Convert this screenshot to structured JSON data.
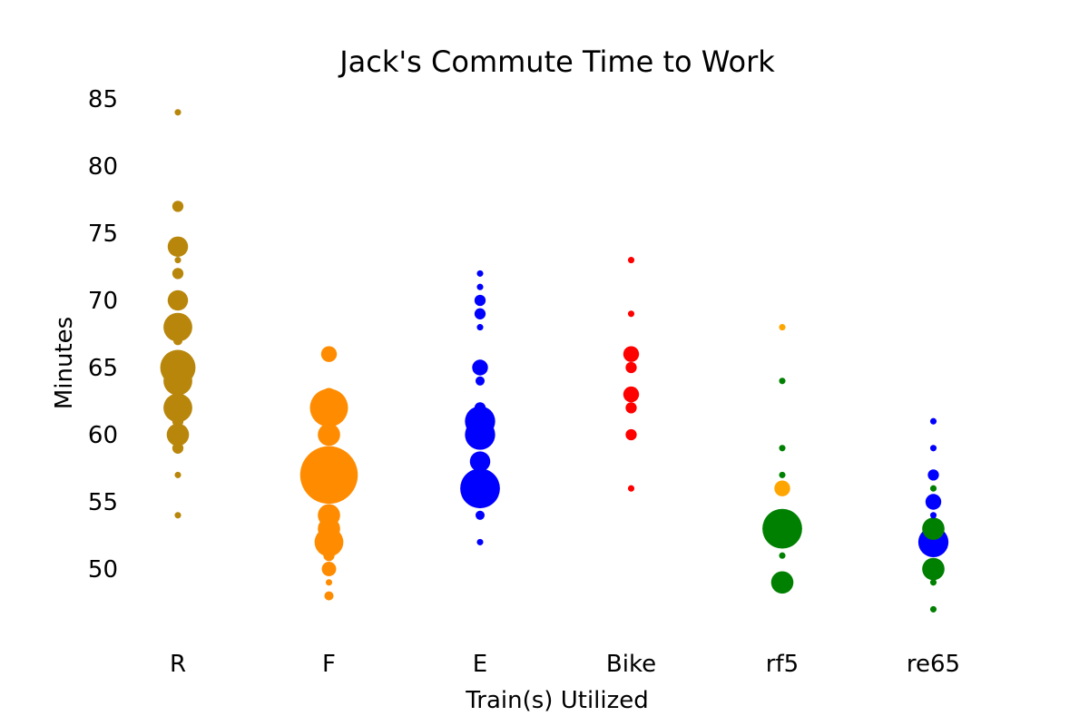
{
  "chart_data": {
    "type": "scatter",
    "title": "Jack's Commute Time to Work",
    "xlabel": "Train(s) Utilized",
    "ylabel": "Minutes",
    "categories": [
      "R",
      "F",
      "E",
      "Bike",
      "rf5",
      "re65"
    ],
    "ylim": [
      44.5,
      86
    ],
    "yticks": [
      50,
      55,
      60,
      65,
      70,
      75,
      80,
      85
    ],
    "grid": false,
    "colors": {
      "R": "#b8860b",
      "F": "#ff8c00",
      "E": "#0000ff",
      "Bike": "#ff0000",
      "rf5_orange": "#ffa500",
      "rf5_green": "#008000",
      "re65_blue": "#0000ff",
      "re65_green": "#008000"
    },
    "points": [
      {
        "cat": "R",
        "minutes": 84,
        "count": 1,
        "color": "#b8860b"
      },
      {
        "cat": "R",
        "minutes": 77,
        "count": 3,
        "color": "#b8860b"
      },
      {
        "cat": "R",
        "minutes": 74,
        "count": 10,
        "color": "#b8860b"
      },
      {
        "cat": "R",
        "minutes": 73,
        "count": 1,
        "color": "#b8860b"
      },
      {
        "cat": "R",
        "minutes": 72,
        "count": 3,
        "color": "#b8860b"
      },
      {
        "cat": "R",
        "minutes": 70,
        "count": 10,
        "color": "#b8860b"
      },
      {
        "cat": "R",
        "minutes": 68,
        "count": 20,
        "color": "#b8860b"
      },
      {
        "cat": "R",
        "minutes": 67,
        "count": 2,
        "color": "#b8860b"
      },
      {
        "cat": "R",
        "minutes": 65,
        "count": 30,
        "color": "#b8860b"
      },
      {
        "cat": "R",
        "minutes": 64,
        "count": 20,
        "color": "#b8860b"
      },
      {
        "cat": "R",
        "minutes": 62,
        "count": 20,
        "color": "#b8860b"
      },
      {
        "cat": "R",
        "minutes": 61,
        "count": 3,
        "color": "#b8860b"
      },
      {
        "cat": "R",
        "minutes": 60,
        "count": 12,
        "color": "#b8860b"
      },
      {
        "cat": "R",
        "minutes": 59,
        "count": 3,
        "color": "#b8860b"
      },
      {
        "cat": "R",
        "minutes": 57,
        "count": 1,
        "color": "#b8860b"
      },
      {
        "cat": "R",
        "minutes": 54,
        "count": 1,
        "color": "#b8860b"
      },
      {
        "cat": "F",
        "minutes": 66,
        "count": 6,
        "color": "#ff8c00"
      },
      {
        "cat": "F",
        "minutes": 63,
        "count": 4,
        "color": "#ff8c00"
      },
      {
        "cat": "F",
        "minutes": 62,
        "count": 35,
        "color": "#ff8c00"
      },
      {
        "cat": "F",
        "minutes": 60,
        "count": 12,
        "color": "#ff8c00"
      },
      {
        "cat": "F",
        "minutes": 58,
        "count": 20,
        "color": "#ff8c00"
      },
      {
        "cat": "F",
        "minutes": 57,
        "count": 80,
        "color": "#ff8c00"
      },
      {
        "cat": "F",
        "minutes": 54,
        "count": 12,
        "color": "#ff8c00"
      },
      {
        "cat": "F",
        "minutes": 53,
        "count": 12,
        "color": "#ff8c00"
      },
      {
        "cat": "F",
        "minutes": 52,
        "count": 20,
        "color": "#ff8c00"
      },
      {
        "cat": "F",
        "minutes": 51,
        "count": 3,
        "color": "#ff8c00"
      },
      {
        "cat": "F",
        "minutes": 50,
        "count": 5,
        "color": "#ff8c00"
      },
      {
        "cat": "F",
        "minutes": 49,
        "count": 1,
        "color": "#ff8c00"
      },
      {
        "cat": "F",
        "minutes": 48,
        "count": 2,
        "color": "#ff8c00"
      },
      {
        "cat": "E",
        "minutes": 72,
        "count": 1,
        "color": "#0000ff"
      },
      {
        "cat": "E",
        "minutes": 71,
        "count": 1,
        "color": "#0000ff"
      },
      {
        "cat": "E",
        "minutes": 70,
        "count": 3,
        "color": "#0000ff"
      },
      {
        "cat": "E",
        "minutes": 69,
        "count": 3,
        "color": "#0000ff"
      },
      {
        "cat": "E",
        "minutes": 68,
        "count": 1,
        "color": "#0000ff"
      },
      {
        "cat": "E",
        "minutes": 65,
        "count": 6,
        "color": "#0000ff"
      },
      {
        "cat": "E",
        "minutes": 64,
        "count": 2,
        "color": "#0000ff"
      },
      {
        "cat": "E",
        "minutes": 62,
        "count": 3,
        "color": "#0000ff"
      },
      {
        "cat": "E",
        "minutes": 61,
        "count": 22,
        "color": "#0000ff"
      },
      {
        "cat": "E",
        "minutes": 60,
        "count": 22,
        "color": "#0000ff"
      },
      {
        "cat": "E",
        "minutes": 58,
        "count": 10,
        "color": "#0000ff"
      },
      {
        "cat": "E",
        "minutes": 56,
        "count": 38,
        "color": "#0000ff"
      },
      {
        "cat": "E",
        "minutes": 54,
        "count": 2,
        "color": "#0000ff"
      },
      {
        "cat": "E",
        "minutes": 52,
        "count": 1,
        "color": "#0000ff"
      },
      {
        "cat": "Bike",
        "minutes": 73,
        "count": 1,
        "color": "#ff0000"
      },
      {
        "cat": "Bike",
        "minutes": 69,
        "count": 1,
        "color": "#ff0000"
      },
      {
        "cat": "Bike",
        "minutes": 66,
        "count": 6,
        "color": "#ff0000"
      },
      {
        "cat": "Bike",
        "minutes": 65,
        "count": 3,
        "color": "#ff0000"
      },
      {
        "cat": "Bike",
        "minutes": 63,
        "count": 6,
        "color": "#ff0000"
      },
      {
        "cat": "Bike",
        "minutes": 62,
        "count": 3,
        "color": "#ff0000"
      },
      {
        "cat": "Bike",
        "minutes": 60,
        "count": 3,
        "color": "#ff0000"
      },
      {
        "cat": "Bike",
        "minutes": 56,
        "count": 1,
        "color": "#ff0000"
      },
      {
        "cat": "rf5",
        "minutes": 68,
        "count": 1,
        "color": "#ffa500"
      },
      {
        "cat": "rf5",
        "minutes": 64,
        "count": 1,
        "color": "#008000"
      },
      {
        "cat": "rf5",
        "minutes": 59,
        "count": 1,
        "color": "#008000"
      },
      {
        "cat": "rf5",
        "minutes": 57,
        "count": 1,
        "color": "#008000"
      },
      {
        "cat": "rf5",
        "minutes": 56,
        "count": 6,
        "color": "#ffa500"
      },
      {
        "cat": "rf5",
        "minutes": 53,
        "count": 38,
        "color": "#008000"
      },
      {
        "cat": "rf5",
        "minutes": 51,
        "count": 1,
        "color": "#008000"
      },
      {
        "cat": "rf5",
        "minutes": 49,
        "count": 12,
        "color": "#008000"
      },
      {
        "cat": "re65",
        "minutes": 61,
        "count": 1,
        "color": "#0000ff"
      },
      {
        "cat": "re65",
        "minutes": 59,
        "count": 1,
        "color": "#0000ff"
      },
      {
        "cat": "re65",
        "minutes": 57,
        "count": 3,
        "color": "#0000ff"
      },
      {
        "cat": "re65",
        "minutes": 56,
        "count": 1,
        "color": "#008000"
      },
      {
        "cat": "re65",
        "minutes": 55,
        "count": 6,
        "color": "#0000ff"
      },
      {
        "cat": "re65",
        "minutes": 54,
        "count": 1,
        "color": "#0000ff"
      },
      {
        "cat": "re65",
        "minutes": 53,
        "count": 12,
        "color": "#008000"
      },
      {
        "cat": "re65",
        "minutes": 52,
        "count": 22,
        "color": "#0000ff"
      },
      {
        "cat": "re65",
        "minutes": 50,
        "count": 12,
        "color": "#008000"
      },
      {
        "cat": "re65",
        "minutes": 49,
        "count": 1,
        "color": "#008000"
      },
      {
        "cat": "re65",
        "minutes": 47,
        "count": 1,
        "color": "#008000"
      }
    ]
  }
}
